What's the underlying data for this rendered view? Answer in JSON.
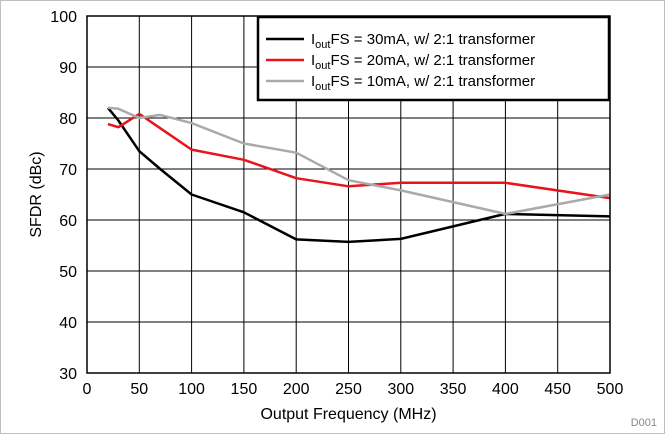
{
  "chart_data": {
    "type": "line",
    "xlabel": "Output Frequency (MHz)",
    "ylabel": "SFDR (dBc)",
    "xlim": [
      0,
      500
    ],
    "ylim": [
      30,
      100
    ],
    "xticks": [
      0,
      50,
      100,
      150,
      200,
      250,
      300,
      350,
      400,
      450,
      500
    ],
    "yticks": [
      30,
      40,
      50,
      60,
      70,
      80,
      90,
      100
    ],
    "grid": true,
    "legend_position": "top-right",
    "series": [
      {
        "name_main": "I",
        "name_sub": "out",
        "name_rest": "FS = 30mA, w/ 2:1 transformer",
        "color": "#000000",
        "points": [
          [
            20,
            82
          ],
          [
            30,
            79.5
          ],
          [
            50,
            73.5
          ],
          [
            70,
            70
          ],
          [
            100,
            65
          ],
          [
            150,
            61.5
          ],
          [
            200,
            56.2
          ],
          [
            250,
            55.7
          ],
          [
            300,
            56.3
          ],
          [
            400,
            61.2
          ],
          [
            500,
            60.7
          ]
        ]
      },
      {
        "name_main": "I",
        "name_sub": "out",
        "name_rest": "FS = 20mA, w/ 2:1 transformer",
        "color": "#e8131b",
        "points": [
          [
            20,
            78.8
          ],
          [
            30,
            78.2
          ],
          [
            50,
            80.8
          ],
          [
            70,
            78
          ],
          [
            100,
            73.8
          ],
          [
            150,
            71.8
          ],
          [
            200,
            68.2
          ],
          [
            250,
            66.6
          ],
          [
            300,
            67.3
          ],
          [
            400,
            67.3
          ],
          [
            500,
            64.3
          ]
        ]
      },
      {
        "name_main": "I",
        "name_sub": "out",
        "name_rest": "FS = 10mA, w/ 2:1 transformer",
        "color": "#aaaaaa",
        "points": [
          [
            20,
            82
          ],
          [
            30,
            81.8
          ],
          [
            50,
            80
          ],
          [
            70,
            80.6
          ],
          [
            100,
            79
          ],
          [
            150,
            75
          ],
          [
            200,
            73.2
          ],
          [
            250,
            67.8
          ],
          [
            300,
            65.8
          ],
          [
            400,
            61.2
          ],
          [
            500,
            65
          ]
        ]
      }
    ],
    "figure_id": "D001"
  }
}
